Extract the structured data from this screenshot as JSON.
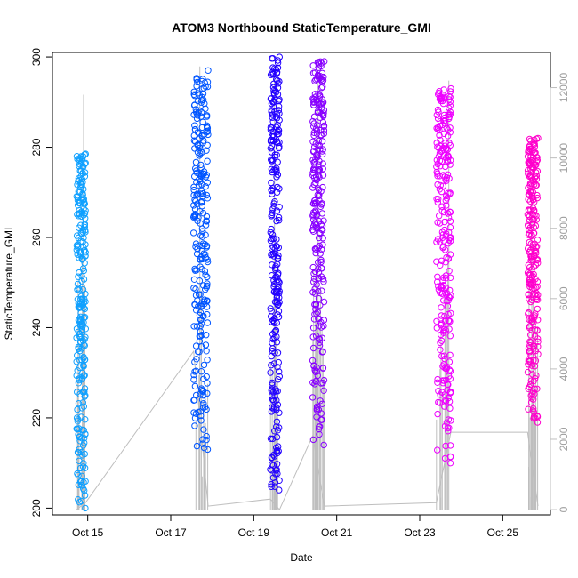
{
  "chart_data": {
    "type": "scatter",
    "title": "ATOM3 Northbound StaticTemperature_GMI",
    "xlabel": "Date",
    "ylabel": "StaticTemperature_GMI",
    "x_tick_labels": [
      "Oct 15",
      "Oct 17",
      "Oct 19",
      "Oct 21",
      "Oct 23",
      "Oct 25"
    ],
    "x_tick_values": [
      15,
      17,
      19,
      21,
      23,
      25
    ],
    "xlim": [
      14.15,
      26.15
    ],
    "ylim": [
      198.5,
      301
    ],
    "y_ticks": [
      200,
      220,
      240,
      260,
      280,
      300
    ],
    "y2lim": [
      -150,
      13000
    ],
    "y2_ticks": [
      0,
      2000,
      4000,
      6000,
      8000,
      10000,
      12000
    ],
    "y2_color": "#bebebe",
    "point_series": [
      {
        "color": "#0FA0FF",
        "x_range": [
          14.73,
          14.95
        ],
        "y_min": 200,
        "y_max": 278.5
      },
      {
        "color": "#0055FF",
        "x_range": [
          17.55,
          17.9
        ],
        "y_min": 213,
        "y_max": 297
      },
      {
        "color": "#2200FF",
        "x_range": [
          19.4,
          19.62
        ],
        "y_min": 204,
        "y_max": 300
      },
      {
        "color": "#8800FF",
        "x_range": [
          20.42,
          20.7
        ],
        "y_min": 214,
        "y_max": 299
      },
      {
        "color": "#EE00FF",
        "x_range": [
          23.4,
          23.75
        ],
        "y_min": 210,
        "y_max": 293
      },
      {
        "color": "#FF00CC",
        "x_range": [
          25.6,
          25.85
        ],
        "y_min": 219,
        "y_max": 282
      }
    ],
    "line_series": {
      "color": "#bebebe",
      "x": [
        14.73,
        14.95,
        17.55,
        17.9,
        19.4,
        19.62,
        20.42,
        20.7,
        23.4,
        23.75,
        25.6,
        25.85
      ],
      "y2": [
        0,
        200,
        4500,
        100,
        300,
        0,
        2100,
        100,
        200,
        2200,
        2200,
        100
      ],
      "spikes": [
        {
          "x": 14.9,
          "y2_top": 11800
        },
        {
          "x": 17.7,
          "y2_top": 12600
        },
        {
          "x": 19.5,
          "y2_top": 12600
        },
        {
          "x": 20.55,
          "y2_top": 12500
        },
        {
          "x": 23.7,
          "y2_top": 12200
        },
        {
          "x": 25.7,
          "y2_top": 9000
        }
      ]
    }
  }
}
